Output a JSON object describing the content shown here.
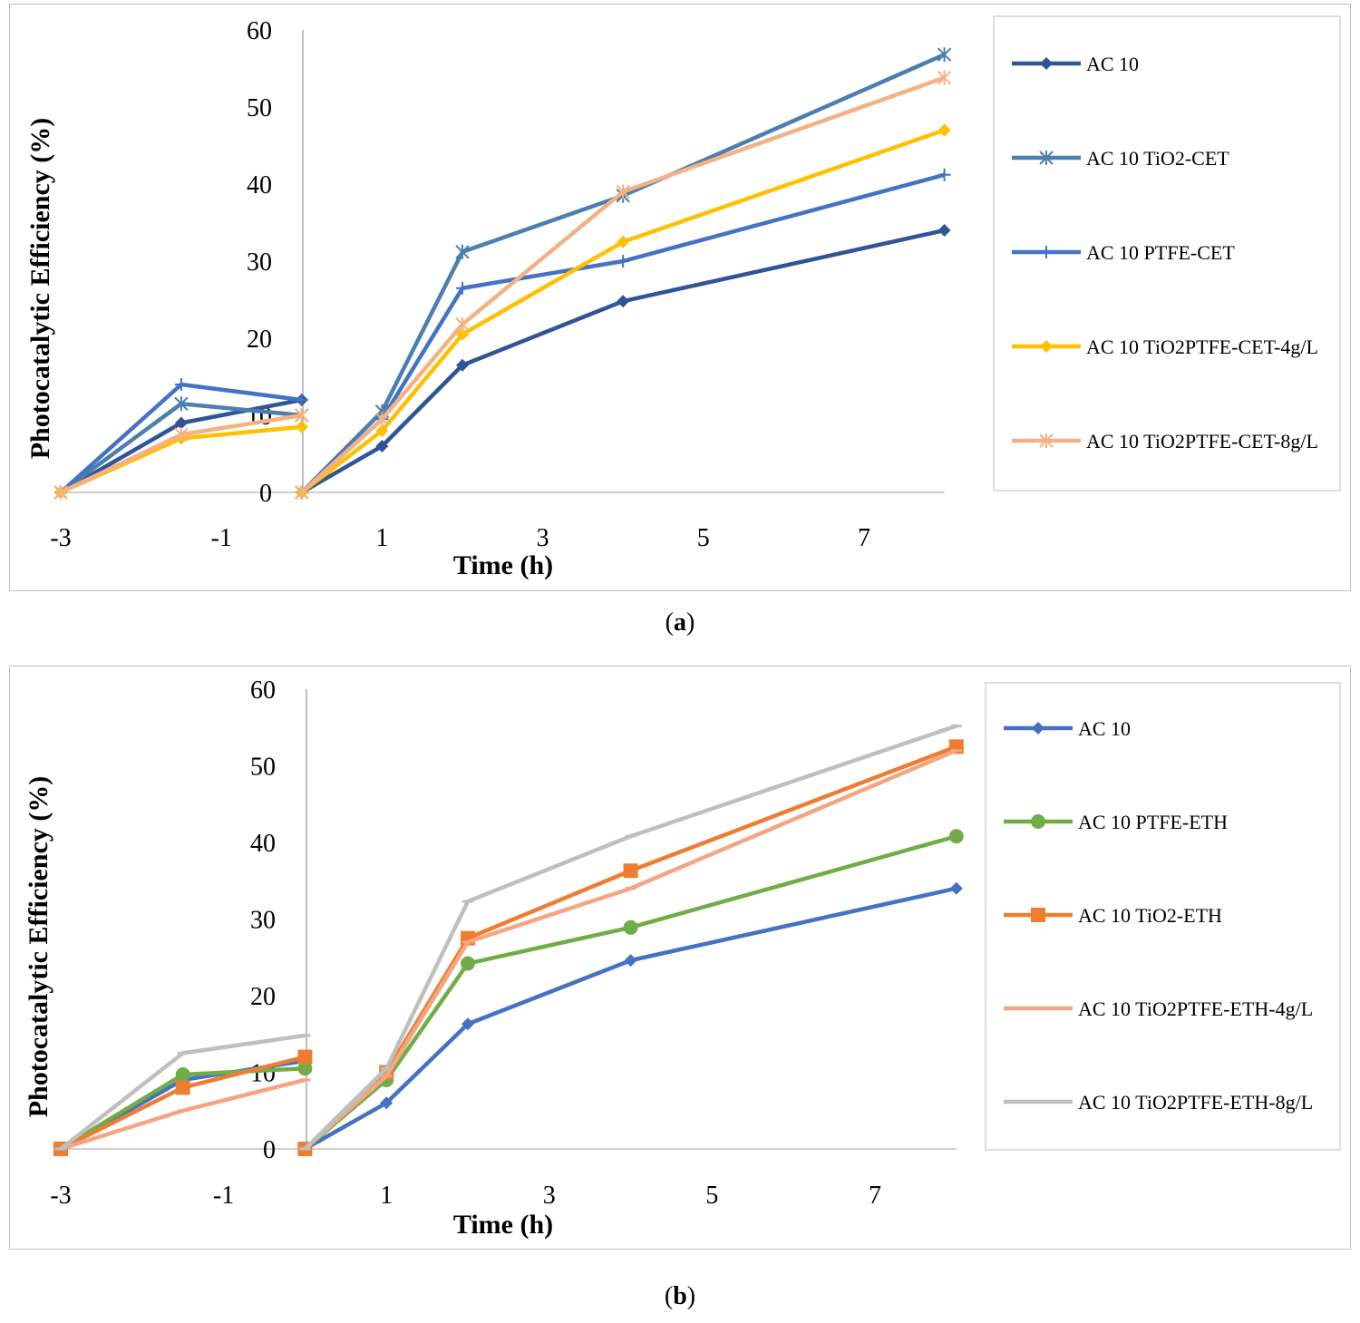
{
  "chart_data": [
    {
      "type": "line",
      "panel": "a",
      "caption": "a",
      "xlabel": "Time (h)",
      "ylabel": "Photocatalytic Efficiency (%)",
      "xlim": [
        -3,
        8
      ],
      "ylim": [
        0,
        60
      ],
      "xticks": [
        -3,
        -1,
        1,
        3,
        5,
        7
      ],
      "yticks": [
        0,
        10,
        20,
        30,
        40,
        50,
        60
      ],
      "legend_position": "right",
      "series": [
        {
          "name": "AC 10",
          "color": "#2f5597",
          "marker": "diamond",
          "segments": [
            {
              "x": [
                -3,
                -1.5,
                0
              ],
              "y": [
                0,
                9,
                12
              ]
            },
            {
              "x": [
                0,
                1,
                2,
                4,
                8
              ],
              "y": [
                0,
                6,
                16.5,
                24.8,
                34
              ]
            }
          ]
        },
        {
          "name": "AC 10 TiO2-CET",
          "color": "#4a7fb0",
          "marker": "star",
          "segments": [
            {
              "x": [
                -3,
                -1.5,
                0
              ],
              "y": [
                0,
                11.5,
                10
              ]
            },
            {
              "x": [
                0,
                1,
                2,
                4,
                8
              ],
              "y": [
                0,
                10.5,
                31.2,
                38.5,
                56.8
              ]
            }
          ]
        },
        {
          "name": "AC 10 PTFE-CET",
          "color": "#4472c4",
          "marker": "plus",
          "segments": [
            {
              "x": [
                -3,
                -1.5,
                0
              ],
              "y": [
                0,
                14,
                12
              ]
            },
            {
              "x": [
                0,
                1,
                2,
                4,
                8
              ],
              "y": [
                0,
                9.5,
                26.5,
                30,
                41.2
              ]
            }
          ]
        },
        {
          "name": "AC 10 TiO2PTFE-CET-4g/L",
          "color": "#ffc000",
          "marker": "diamond",
          "segments": [
            {
              "x": [
                -3,
                -1.5,
                0
              ],
              "y": [
                0,
                7,
                8.5
              ]
            },
            {
              "x": [
                0,
                1,
                2,
                4,
                8
              ],
              "y": [
                0,
                8,
                20.5,
                32.5,
                47
              ]
            }
          ]
        },
        {
          "name": "AC 10 TiO2PTFE-CET-8g/L",
          "color": "#f4b183",
          "marker": "star",
          "segments": [
            {
              "x": [
                -3,
                -1.5,
                0
              ],
              "y": [
                0,
                7.5,
                10
              ]
            },
            {
              "x": [
                0,
                1,
                2,
                4,
                8
              ],
              "y": [
                0,
                9.5,
                21.8,
                39,
                53.8
              ]
            }
          ]
        }
      ]
    },
    {
      "type": "line",
      "panel": "b",
      "caption": "b",
      "xlabel": "Time (h)",
      "ylabel": "Photocatalytic Efficiency (%)",
      "xlim": [
        -3,
        8
      ],
      "ylim": [
        0,
        60
      ],
      "xticks": [
        -3,
        -1,
        1,
        3,
        5,
        7
      ],
      "yticks": [
        0,
        10,
        20,
        30,
        40,
        50,
        60
      ],
      "legend_position": "right",
      "series": [
        {
          "name": "AC 10",
          "color": "#4472c4",
          "marker": "diamond",
          "segments": [
            {
              "x": [
                -3,
                -1.5,
                0
              ],
              "y": [
                0,
                9,
                11.5
              ]
            },
            {
              "x": [
                0,
                1,
                2,
                4,
                8
              ],
              "y": [
                0,
                6,
                16.3,
                24.6,
                34
              ]
            }
          ]
        },
        {
          "name": "AC 10 PTFE-ETH",
          "color": "#70ad47",
          "marker": "circle",
          "segments": [
            {
              "x": [
                -3,
                -1.5,
                0
              ],
              "y": [
                0,
                9.7,
                10.5
              ]
            },
            {
              "x": [
                0,
                1,
                2,
                4,
                8
              ],
              "y": [
                0,
                9,
                24.2,
                28.9,
                40.8
              ]
            }
          ]
        },
        {
          "name": "AC 10 TiO2-ETH",
          "color": "#ed7d31",
          "marker": "square",
          "segments": [
            {
              "x": [
                -3,
                -1.5,
                0
              ],
              "y": [
                0,
                8,
                12
              ]
            },
            {
              "x": [
                0,
                1,
                2,
                4,
                8
              ],
              "y": [
                0,
                10,
                27.5,
                36.3,
                52.5
              ]
            }
          ]
        },
        {
          "name": "AC 10 TiO2PTFE-ETH-4g/L",
          "color": "#f4a582",
          "marker": "dash",
          "segments": [
            {
              "x": [
                -3,
                -1.5,
                0
              ],
              "y": [
                0,
                5,
                9
              ]
            },
            {
              "x": [
                0,
                1,
                2,
                4,
                8
              ],
              "y": [
                0,
                9.5,
                27,
                34,
                52
              ]
            }
          ]
        },
        {
          "name": "AC 10 TiO2PTFE-ETH-8g/L",
          "color": "#bfbfbf",
          "marker": "dash",
          "segments": [
            {
              "x": [
                -3,
                -1.5,
                0
              ],
              "y": [
                0,
                12.5,
                14.8
              ]
            },
            {
              "x": [
                0,
                1,
                2,
                4,
                8
              ],
              "y": [
                0,
                10.5,
                32.3,
                40.8,
                55.2
              ]
            }
          ]
        }
      ]
    }
  ]
}
